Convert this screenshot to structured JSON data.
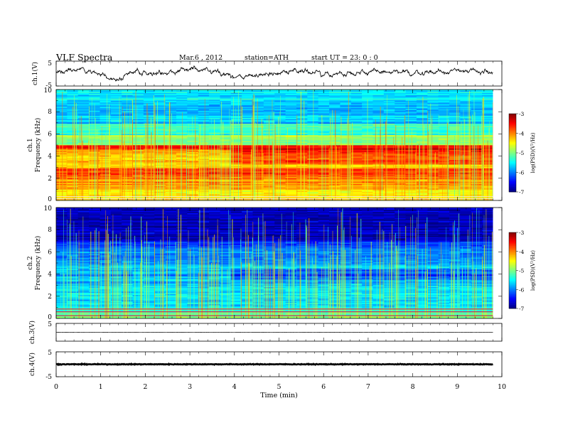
{
  "header": {
    "title": "VLF  Spectra",
    "date": "Mar.6  , 2012",
    "station": "station=ATH",
    "start": "start  UT  =   23: 0  : 0"
  },
  "chart_data": [
    {
      "id": "ch1-waveform",
      "type": "line",
      "ylabel": "ch.1(V)",
      "ylim": [
        -5,
        5
      ],
      "ytick_labels": [
        "5",
        "-5"
      ],
      "x_range_min": [
        0,
        9.8
      ],
      "description_values": "noisy voltage waveform fluctuating roughly between -3 and +3 V",
      "approx_envelope": [
        {
          "x": 0.0,
          "y": 0.5
        },
        {
          "x": 0.5,
          "y": 2.0
        },
        {
          "x": 1.0,
          "y": -0.5
        },
        {
          "x": 1.3,
          "y": -2.5
        },
        {
          "x": 1.8,
          "y": 0.8
        },
        {
          "x": 2.5,
          "y": 0.0
        },
        {
          "x": 3.0,
          "y": 2.2
        },
        {
          "x": 3.5,
          "y": 0.5
        },
        {
          "x": 4.2,
          "y": -1.5
        },
        {
          "x": 5.0,
          "y": 0.5
        },
        {
          "x": 5.5,
          "y": 1.5
        },
        {
          "x": 6.0,
          "y": -0.5
        },
        {
          "x": 7.0,
          "y": 0.8
        },
        {
          "x": 8.0,
          "y": 0.2
        },
        {
          "x": 9.0,
          "y": 1.2
        },
        {
          "x": 9.8,
          "y": 0.5
        }
      ]
    },
    {
      "id": "ch1-spectrogram",
      "type": "heatmap",
      "ylabel": "Frequency  (kHz)",
      "channel_label": "ch.1",
      "ylim": [
        0,
        10
      ],
      "ytick_labels": [
        "0",
        "2",
        "4",
        "6",
        "8",
        "10"
      ],
      "x_range_min": [
        0,
        9.8
      ],
      "colorbar": {
        "label": "log(PSD)(V²/Hz)",
        "range": [
          -7,
          -3
        ],
        "tick_labels": [
          "-3",
          "-4",
          "-5",
          "-6",
          "-7"
        ]
      },
      "bands_logpsd": [
        {
          "f": [
            9.0,
            10.0
          ],
          "v": -5.6
        },
        {
          "f": [
            7.0,
            9.0
          ],
          "v": -5.7
        },
        {
          "f": [
            6.0,
            7.0
          ],
          "v": -5.3
        },
        {
          "f": [
            5.0,
            6.0
          ],
          "v": -4.9
        },
        {
          "f": [
            4.6,
            5.0
          ],
          "v": -3.5
        },
        {
          "f": [
            3.0,
            4.6
          ],
          "v": -4.3
        },
        {
          "f": [
            2.0,
            3.0
          ],
          "v": -3.8
        },
        {
          "f": [
            1.0,
            2.0
          ],
          "v": -4.1
        },
        {
          "f": [
            0.0,
            1.0
          ],
          "v": -4.4
        }
      ]
    },
    {
      "id": "ch2-spectrogram",
      "type": "heatmap",
      "ylabel": "Frequency  (kHz)",
      "channel_label": "ch.2",
      "ylim": [
        0,
        10
      ],
      "ytick_labels": [
        "0",
        "2",
        "4",
        "6",
        "8",
        "10"
      ],
      "x_range_min": [
        0,
        9.8
      ],
      "colorbar": {
        "label": "log(PSD)(V²/Hz)",
        "range": [
          -7,
          -3
        ],
        "tick_labels": [
          "-3",
          "-4",
          "-5",
          "-6",
          "-7"
        ]
      },
      "bands_logpsd": [
        {
          "f": [
            7.0,
            10.0
          ],
          "v": -6.8
        },
        {
          "f": [
            6.5,
            7.0
          ],
          "v": -6.2
        },
        {
          "f": [
            5.0,
            6.5
          ],
          "v": -6.0
        },
        {
          "f": [
            3.0,
            5.0
          ],
          "v": -5.8
        },
        {
          "f": [
            1.0,
            3.0
          ],
          "v": -5.6
        },
        {
          "f": [
            0.5,
            1.0
          ],
          "v": -5.3
        },
        {
          "f": [
            0.0,
            0.5
          ],
          "v": -5.0
        }
      ]
    },
    {
      "id": "ch3-waveform",
      "type": "line",
      "ylabel": "ch.3(V)",
      "ylim": [
        -5,
        5
      ],
      "ytick_labels": [
        "5"
      ],
      "x_range_min": [
        0,
        9.8
      ],
      "level": 0
    },
    {
      "id": "ch4-waveform",
      "type": "line",
      "ylabel": "ch.4(V)",
      "ylim": [
        -5,
        5
      ],
      "ytick_labels": [
        "5",
        "-5"
      ],
      "x_range_min": [
        0,
        9.8
      ],
      "level": 0
    }
  ],
  "xaxis": {
    "label": "Time  (min)",
    "range": [
      0,
      10
    ],
    "tick_labels": [
      "0",
      "1",
      "2",
      "3",
      "4",
      "5",
      "6",
      "7",
      "8",
      "9",
      "10"
    ]
  }
}
